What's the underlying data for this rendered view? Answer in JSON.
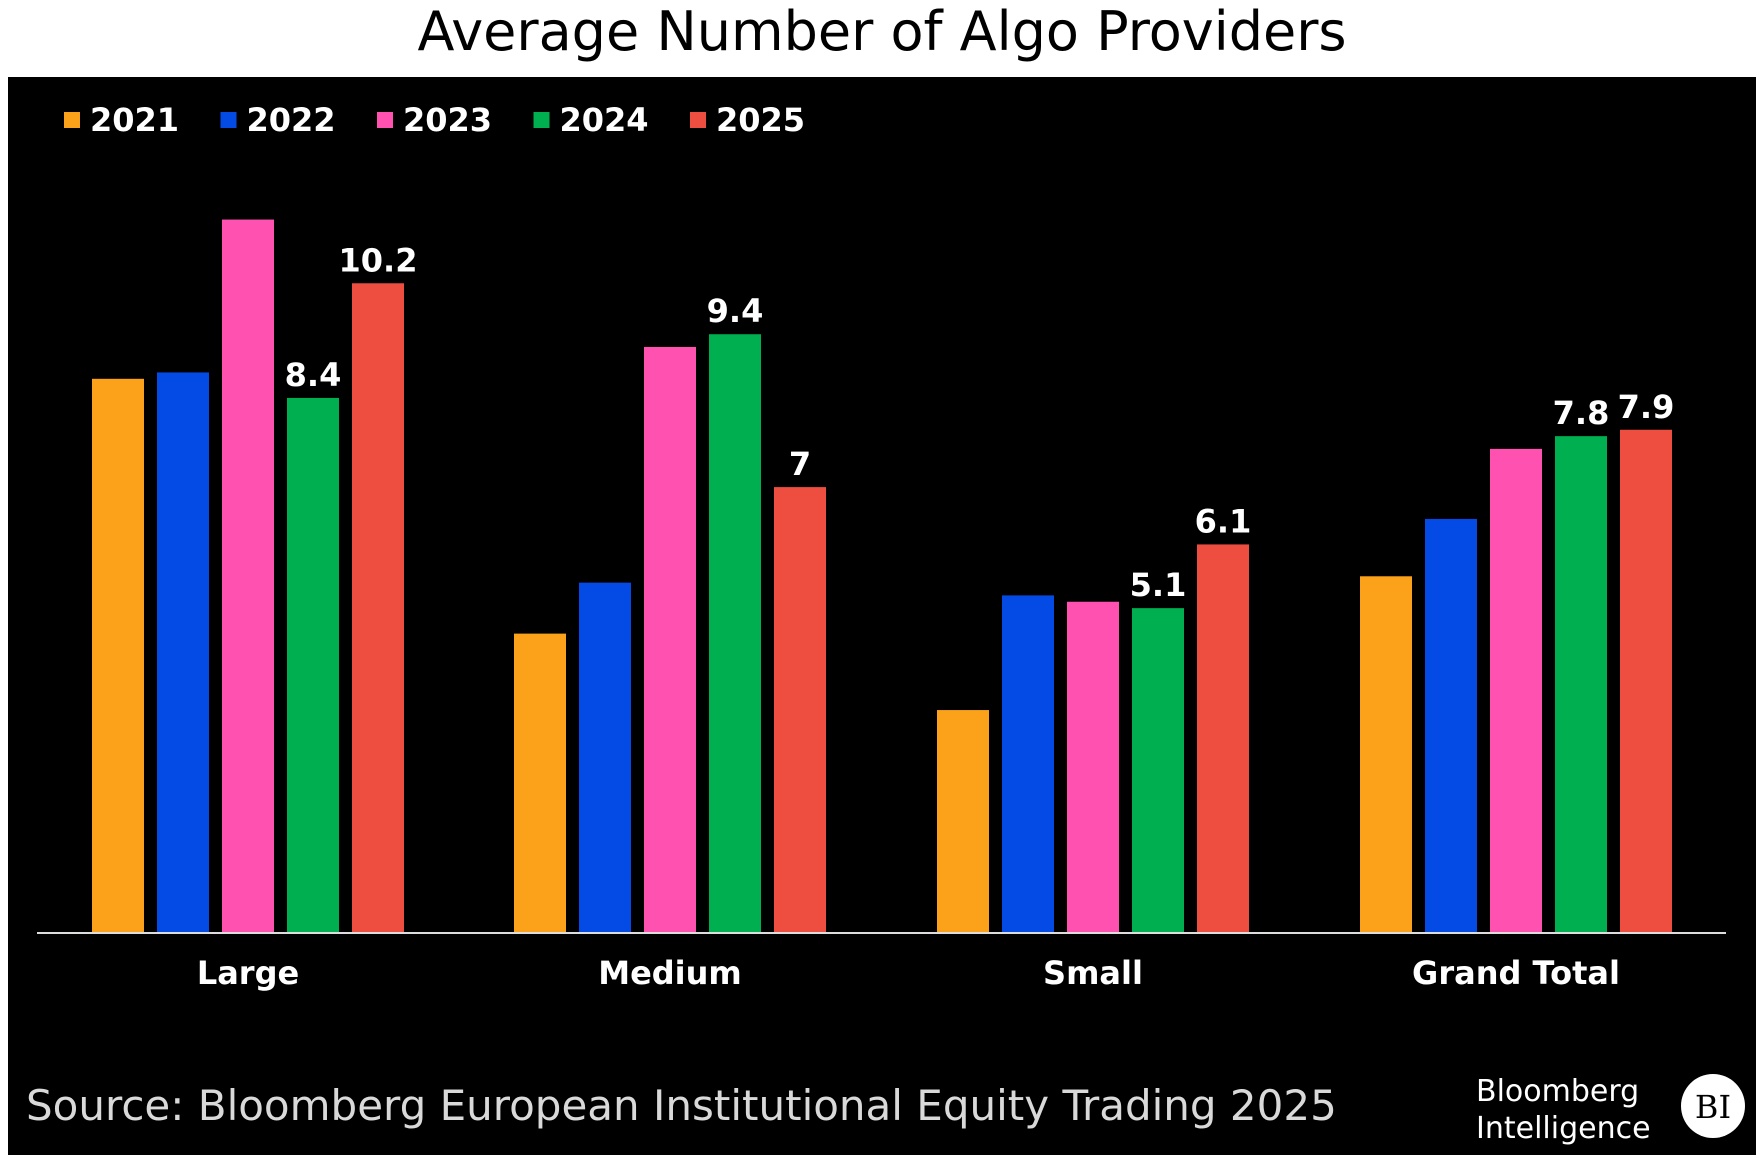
{
  "chart_data": {
    "type": "bar",
    "title": "Average Number of Algo Providers",
    "categories": [
      "Large",
      "Medium",
      "Small",
      "Grand Total"
    ],
    "series": [
      {
        "name": "2021",
        "color": "#FBA21A",
        "values": [
          8.7,
          4.7,
          3.5,
          5.6
        ]
      },
      {
        "name": "2022",
        "color": "#034BE4",
        "values": [
          8.8,
          5.5,
          5.3,
          6.5
        ]
      },
      {
        "name": "2023",
        "color": "#FF52B0",
        "values": [
          11.2,
          9.2,
          5.2,
          7.6
        ]
      },
      {
        "name": "2024",
        "color": "#00AF4F",
        "values": [
          8.4,
          9.4,
          5.1,
          7.8
        ]
      },
      {
        "name": "2025",
        "color": "#EE4E40",
        "values": [
          10.2,
          7.0,
          6.1,
          7.9
        ]
      }
    ],
    "data_labels": [
      {
        "category": "Large",
        "series": "2024",
        "text": "8.4"
      },
      {
        "category": "Large",
        "series": "2025",
        "text": "10.2"
      },
      {
        "category": "Medium",
        "series": "2024",
        "text": "9.4"
      },
      {
        "category": "Medium",
        "series": "2025",
        "text": "7"
      },
      {
        "category": "Small",
        "series": "2024",
        "text": "5.1"
      },
      {
        "category": "Small",
        "series": "2025",
        "text": "6.1"
      },
      {
        "category": "Grand Total",
        "series": "2024",
        "text": "7.8"
      },
      {
        "category": "Grand Total",
        "series": "2025",
        "text": "7.9"
      }
    ],
    "xlabel": "",
    "ylabel": "",
    "ylim": [
      0,
      12
    ],
    "grid": false,
    "legend_position": "top-left",
    "background": "#000000"
  },
  "source": "Source: Bloomberg European Institutional Equity Trading 2025",
  "logo": {
    "line1": "Bloomberg",
    "line2": "Intelligence",
    "badge": "BI"
  }
}
